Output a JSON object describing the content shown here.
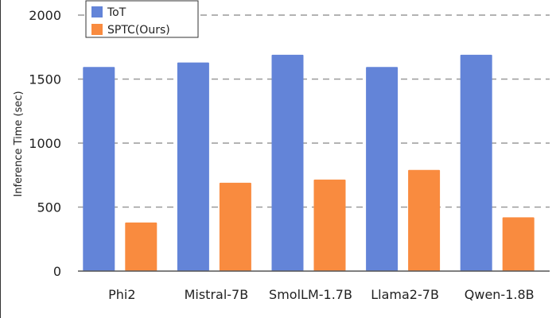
{
  "chart_data": {
    "type": "bar",
    "categories": [
      "Phi2",
      "Mistral-7B",
      "SmolLM-1.7B",
      "Llama2-7B",
      "Qwen-1.8B"
    ],
    "series": [
      {
        "name": "ToT",
        "color": "#6384d8",
        "values": [
          1595,
          1630,
          1690,
          1595,
          1690
        ]
      },
      {
        "name": "SPTC(Ours)",
        "color": "#f98b3f",
        "values": [
          380,
          690,
          715,
          790,
          420
        ]
      }
    ],
    "ylabel": "Inference Time (sec)",
    "ylim": [
      0,
      2000
    ],
    "yticks": [
      0,
      500,
      1000,
      1500,
      2000
    ],
    "grid": true,
    "legend_position": "top-left"
  }
}
